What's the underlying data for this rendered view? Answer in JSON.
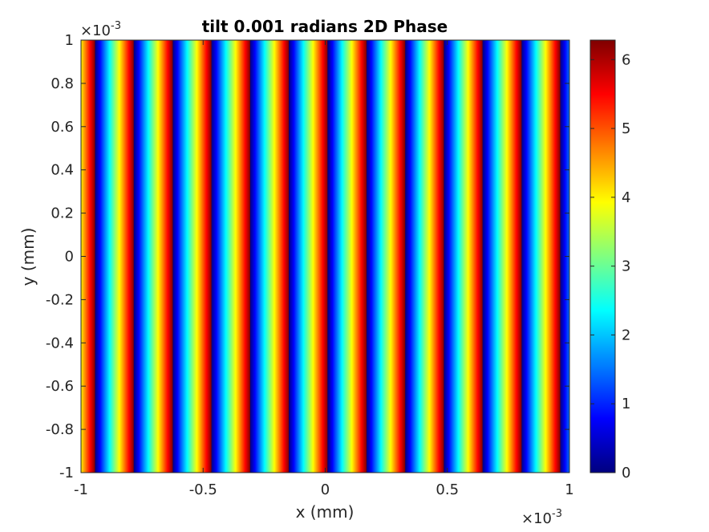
{
  "chart_data": {
    "type": "heatmap",
    "title": "tilt 0.001 radians 2D Phase",
    "xlabel": "x (mm)",
    "ylabel": "y (mm)",
    "xlim": [
      -0.001,
      0.001
    ],
    "ylim": [
      -0.001,
      0.001
    ],
    "x_exponent": {
      "times": "×10",
      "power": "-3"
    },
    "y_exponent": {
      "times": "×10",
      "power": "-3"
    },
    "x_ticks": [
      {
        "value": -1,
        "label": "-1"
      },
      {
        "value": -0.5,
        "label": "-0.5"
      },
      {
        "value": 0,
        "label": "0"
      },
      {
        "value": 0.5,
        "label": "0.5"
      },
      {
        "value": 1,
        "label": "1"
      }
    ],
    "y_ticks": [
      {
        "value": 1,
        "label": "1"
      },
      {
        "value": 0.8,
        "label": "0.8"
      },
      {
        "value": 0.6,
        "label": "0.6"
      },
      {
        "value": 0.4,
        "label": "0.4"
      },
      {
        "value": 0.2,
        "label": "0.2"
      },
      {
        "value": 0,
        "label": "0"
      },
      {
        "value": -0.2,
        "label": "-0.2"
      },
      {
        "value": -0.4,
        "label": "-0.4"
      },
      {
        "value": -0.6,
        "label": "-0.6"
      },
      {
        "value": -0.8,
        "label": "-0.8"
      },
      {
        "value": -1,
        "label": "-1"
      }
    ],
    "colorbar": {
      "colormap": "jet",
      "clim": [
        0,
        6.2832
      ],
      "ticks": [
        {
          "value": 0,
          "label": "0"
        },
        {
          "value": 1,
          "label": "1"
        },
        {
          "value": 2,
          "label": "2"
        },
        {
          "value": 3,
          "label": "3"
        },
        {
          "value": 4,
          "label": "4"
        },
        {
          "value": 5,
          "label": "5"
        },
        {
          "value": 6,
          "label": "6"
        }
      ]
    },
    "phase_pattern": {
      "orientation": "vertical-stripes",
      "fringe_period_x": 0.0001587,
      "phase_at_x_min": 4.0,
      "wrapped_range": [
        0,
        6.2832
      ]
    },
    "grid": false,
    "legend": "none"
  }
}
